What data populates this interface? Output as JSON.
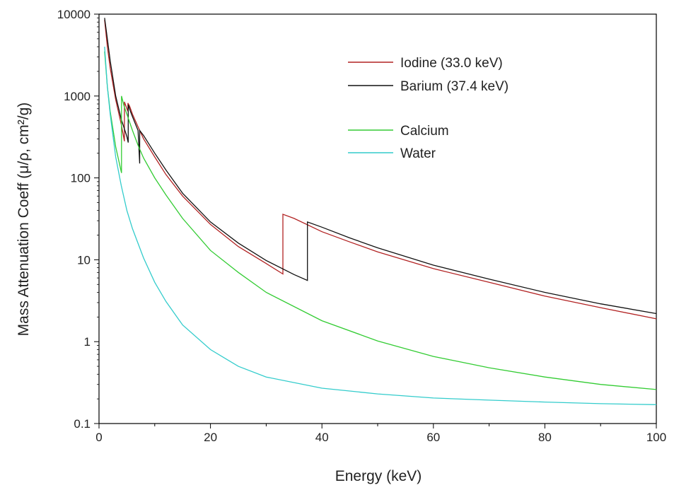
{
  "chart_data": {
    "type": "line",
    "title": "",
    "xlabel": "Energy (keV)",
    "ylabel": "Mass Attenuation Coeff (μ/ρ, cm²/g)",
    "xlim": [
      0,
      100
    ],
    "ylim": [
      0.1,
      10000
    ],
    "yscale": "log",
    "x_ticks": [
      0,
      20,
      40,
      60,
      80,
      100
    ],
    "x_tick_labels": [
      "0",
      "20",
      "40",
      "60",
      "80",
      "100"
    ],
    "y_ticks": [
      0.1,
      1,
      10,
      100,
      1000,
      10000
    ],
    "y_tick_labels": [
      "0.1",
      "1",
      "10",
      "100",
      "1000",
      "10000"
    ],
    "grid": false,
    "legend_position": "top-right",
    "series": [
      {
        "name": "Iodine (33.0 keV)",
        "color": "#b22222",
        "points": [
          [
            1,
            8500
          ],
          [
            1.5,
            4000
          ],
          [
            2,
            2200
          ],
          [
            3,
            900
          ],
          [
            4,
            450
          ],
          [
            4.557,
            280
          ],
          [
            4.557,
            850
          ],
          [
            5,
            700
          ],
          [
            5.188,
            650
          ],
          [
            5.188,
            820
          ],
          [
            5.5,
            750
          ],
          [
            6,
            600
          ],
          [
            7,
            420
          ],
          [
            8,
            300
          ],
          [
            10,
            180
          ],
          [
            12,
            110
          ],
          [
            15,
            60
          ],
          [
            20,
            27
          ],
          [
            25,
            14.5
          ],
          [
            30,
            9
          ],
          [
            33.0,
            6.7
          ],
          [
            33.0,
            36
          ],
          [
            35,
            32
          ],
          [
            40,
            22
          ],
          [
            45,
            16.5
          ],
          [
            50,
            12.5
          ],
          [
            60,
            7.8
          ],
          [
            70,
            5.3
          ],
          [
            80,
            3.6
          ],
          [
            90,
            2.6
          ],
          [
            100,
            1.9
          ]
        ]
      },
      {
        "name": "Barium (37.4 keV)",
        "color": "#111111",
        "points": [
          [
            1,
            9000
          ],
          [
            1.5,
            5000
          ],
          [
            2,
            2700
          ],
          [
            3,
            1000
          ],
          [
            4,
            520
          ],
          [
            5,
            320
          ],
          [
            5.247,
            270
          ],
          [
            5.247,
            780
          ],
          [
            5.6,
            660
          ],
          [
            6,
            560
          ],
          [
            7,
            380
          ],
          [
            7.3,
            150
          ],
          [
            7.3,
            380
          ],
          [
            8,
            330
          ],
          [
            10,
            200
          ],
          [
            12,
            125
          ],
          [
            15,
            65
          ],
          [
            20,
            29
          ],
          [
            25,
            16
          ],
          [
            30,
            9.8
          ],
          [
            35,
            6.6
          ],
          [
            37.4,
            5.6
          ],
          [
            37.4,
            29
          ],
          [
            40,
            25
          ],
          [
            45,
            18.5
          ],
          [
            50,
            14
          ],
          [
            60,
            8.6
          ],
          [
            70,
            5.8
          ],
          [
            80,
            4.0
          ],
          [
            90,
            2.9
          ],
          [
            100,
            2.2
          ]
        ]
      },
      {
        "name": "Calcium",
        "color": "#33cc33",
        "points": [
          [
            1,
            3500
          ],
          [
            1.5,
            1300
          ],
          [
            2,
            650
          ],
          [
            3,
            240
          ],
          [
            4.038,
            115
          ],
          [
            4.038,
            1000
          ],
          [
            4.5,
            750
          ],
          [
            5,
            600
          ],
          [
            6,
            380
          ],
          [
            7,
            250
          ],
          [
            8,
            175
          ],
          [
            10,
            100
          ],
          [
            12,
            62
          ],
          [
            15,
            32
          ],
          [
            20,
            13
          ],
          [
            25,
            7
          ],
          [
            30,
            4
          ],
          [
            40,
            1.8
          ],
          [
            50,
            1.02
          ],
          [
            60,
            0.66
          ],
          [
            70,
            0.48
          ],
          [
            80,
            0.37
          ],
          [
            90,
            0.3
          ],
          [
            100,
            0.26
          ]
        ]
      },
      {
        "name": "Water",
        "color": "#33cccc",
        "points": [
          [
            1,
            4000
          ],
          [
            1.5,
            1300
          ],
          [
            2,
            600
          ],
          [
            3,
            180
          ],
          [
            4,
            80
          ],
          [
            5,
            40
          ],
          [
            6,
            24
          ],
          [
            8,
            10.5
          ],
          [
            10,
            5.3
          ],
          [
            12,
            3.1
          ],
          [
            15,
            1.6
          ],
          [
            20,
            0.8
          ],
          [
            25,
            0.5
          ],
          [
            30,
            0.37
          ],
          [
            40,
            0.27
          ],
          [
            50,
            0.23
          ],
          [
            60,
            0.205
          ],
          [
            70,
            0.193
          ],
          [
            80,
            0.183
          ],
          [
            90,
            0.175
          ],
          [
            100,
            0.17
          ]
        ]
      }
    ]
  }
}
